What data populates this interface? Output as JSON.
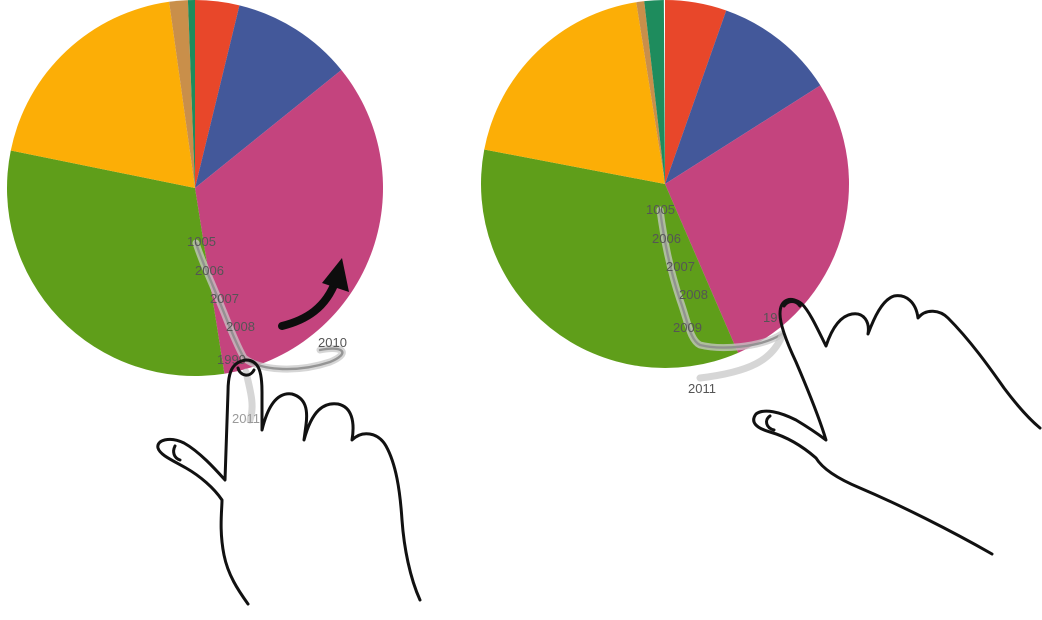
{
  "colors": {
    "red": "#E8472A",
    "blue": "#43589A",
    "magenta": "#C4447E",
    "green": "#5F9E1A",
    "orange": "#FCAE06",
    "tan": "#C98F4A",
    "teal": "#1E8C5D"
  },
  "panels": [
    {
      "id": "left",
      "slices": [
        {
          "color": "red",
          "percent": 3.8
        },
        {
          "color": "blue",
          "percent": 10.4
        },
        {
          "color": "magenta",
          "percent": 33.3
        },
        {
          "color": "green",
          "percent": 30.7
        },
        {
          "color": "orange",
          "percent": 19.6
        },
        {
          "color": "tan",
          "percent": 1.6
        },
        {
          "color": "teal",
          "percent": 0.6
        }
      ],
      "year_labels": [
        "1005",
        "2006",
        "2007",
        "2008",
        "1999",
        "2010",
        "2011"
      ],
      "rotation_arrow": "rotate-arrow-icon"
    },
    {
      "id": "right",
      "slices": [
        {
          "color": "red",
          "percent": 5.4
        },
        {
          "color": "blue",
          "percent": 10.6
        },
        {
          "color": "magenta",
          "percent": 27.5
        },
        {
          "color": "green",
          "percent": 34.5
        },
        {
          "color": "orange",
          "percent": 19.5
        },
        {
          "color": "tan",
          "percent": 0.7
        },
        {
          "color": "teal",
          "percent": 1.7
        }
      ],
      "year_labels": [
        "1005",
        "2006",
        "2007",
        "2008",
        "2009",
        "19",
        "2011"
      ]
    }
  ]
}
